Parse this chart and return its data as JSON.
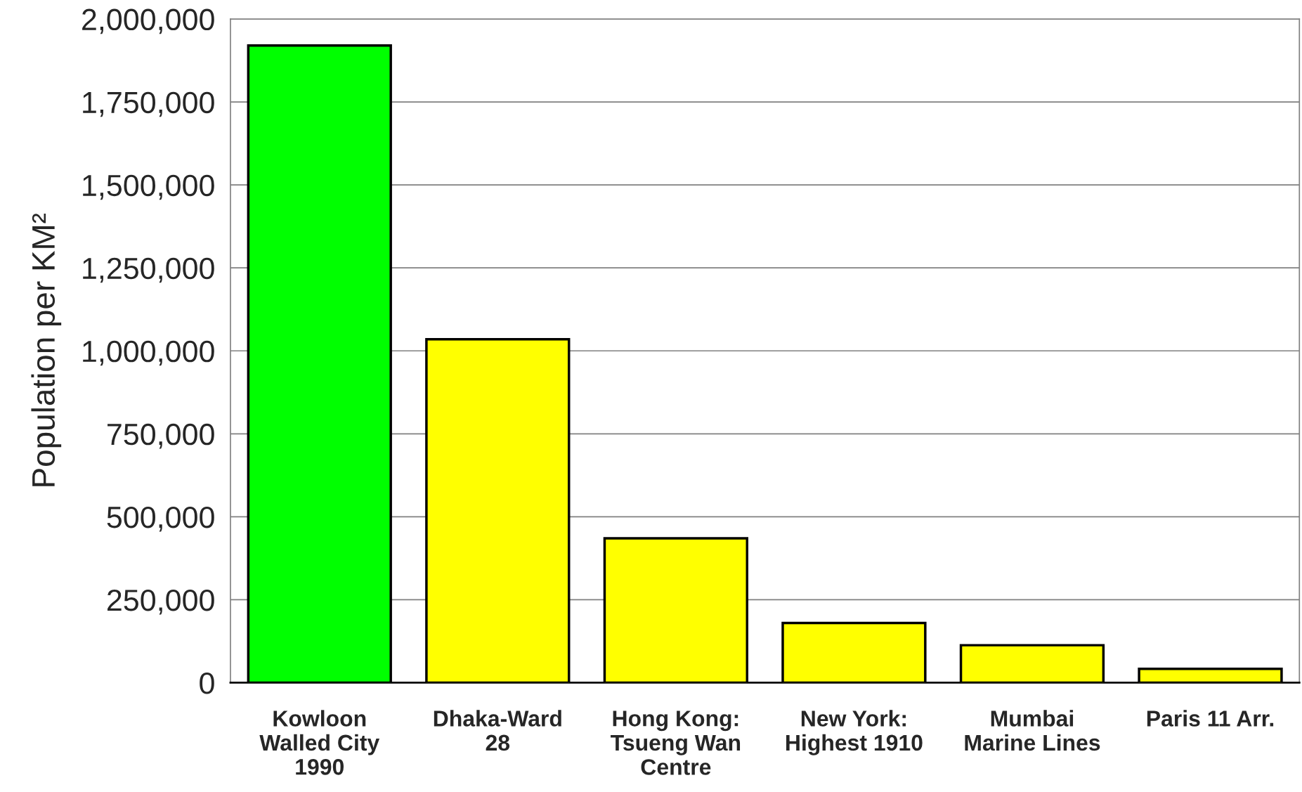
{
  "chart_data": {
    "type": "bar",
    "ylabel": "Population per KM²",
    "categories": [
      "Kowloon\nWalled City\n1990",
      "Dhaka-Ward\n28",
      "Hong Kong:\nTsueng Wan\nCentre",
      "New York:\nHighest 1910",
      "Mumbai\nMarine Lines",
      "Paris 11 Arr."
    ],
    "values": [
      1920000,
      1035000,
      435000,
      180000,
      113000,
      42000
    ],
    "colors": [
      "#00ff00",
      "#ffff00",
      "#ffff00",
      "#ffff00",
      "#ffff00",
      "#ffff00"
    ],
    "ylim": [
      0,
      2000000
    ],
    "yticks": [
      {
        "value": 0,
        "label": "0"
      },
      {
        "value": 250000,
        "label": "250,000"
      },
      {
        "value": 500000,
        "label": "500,000"
      },
      {
        "value": 750000,
        "label": "750,000"
      },
      {
        "value": 1000000,
        "label": "1,000,000"
      },
      {
        "value": 1250000,
        "label": "1,250,000"
      },
      {
        "value": 1500000,
        "label": "1,500,000"
      },
      {
        "value": 1750000,
        "label": "1,750,000"
      },
      {
        "value": 2000000,
        "label": "2,000,000"
      }
    ],
    "grid": "y",
    "legend": false
  }
}
